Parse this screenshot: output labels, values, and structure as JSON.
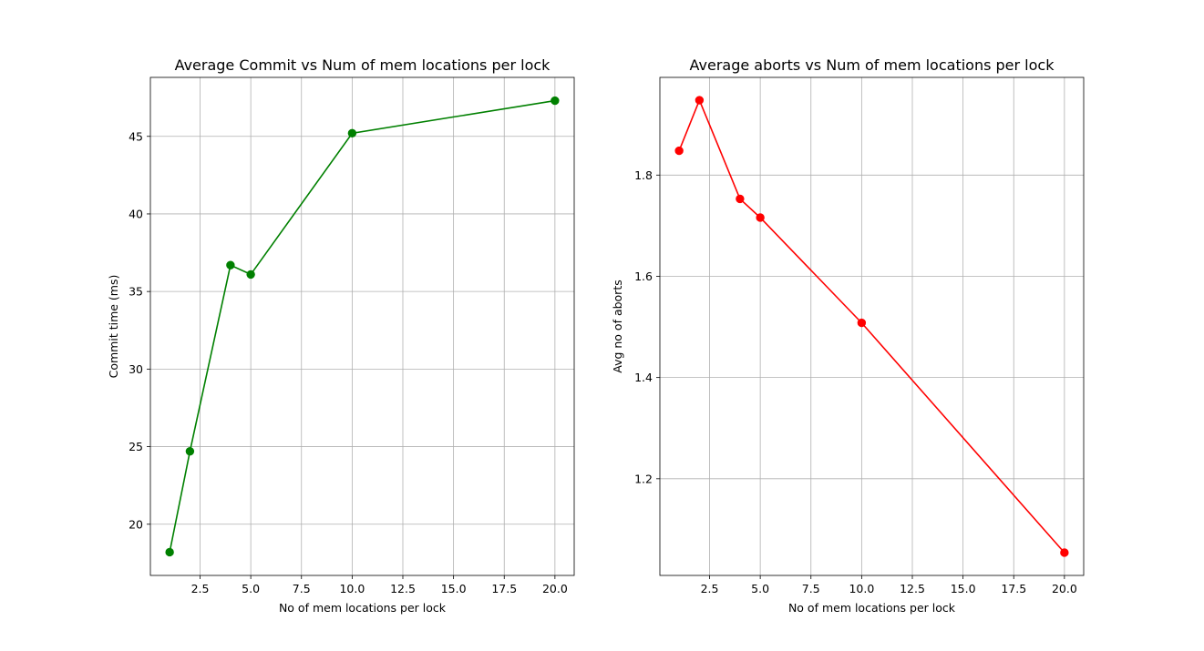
{
  "chart_data": [
    {
      "type": "line",
      "title": "Average Commit vs Num of mem locations per lock",
      "xlabel": "No of mem locations per lock",
      "ylabel": "Commit time (ms)",
      "x": [
        1,
        2,
        4,
        5,
        10,
        20
      ],
      "series": [
        {
          "values": [
            18.2,
            24.7,
            36.7,
            36.1,
            45.2,
            47.3
          ],
          "color": "#008000",
          "marker": "circle"
        }
      ],
      "xlim": [
        0.05,
        20.95
      ],
      "ylim": [
        16.7,
        48.8
      ],
      "xticks": [
        2.5,
        5.0,
        7.5,
        10.0,
        12.5,
        15.0,
        17.5,
        20.0
      ],
      "xtick_labels": [
        "2.5",
        "5.0",
        "7.5",
        "10.0",
        "12.5",
        "15.0",
        "17.5",
        "20.0"
      ],
      "yticks": [
        20,
        25,
        30,
        35,
        40,
        45
      ],
      "ytick_labels": [
        "20",
        "25",
        "30",
        "35",
        "40",
        "45"
      ],
      "grid": true
    },
    {
      "type": "line",
      "title": "Average aborts vs Num of mem locations per lock",
      "xlabel": "No of mem locations per lock",
      "ylabel": "Avg no of aborts",
      "x": [
        1,
        2,
        4,
        5,
        10,
        20
      ],
      "series": [
        {
          "values": [
            1.848,
            1.948,
            1.753,
            1.716,
            1.508,
            1.054
          ],
          "color": "#ff0000",
          "marker": "circle"
        }
      ],
      "xlim": [
        0.05,
        20.95
      ],
      "ylim": [
        1.009,
        1.993
      ],
      "xticks": [
        2.5,
        5.0,
        7.5,
        10.0,
        12.5,
        15.0,
        17.5,
        20.0
      ],
      "xtick_labels": [
        "2.5",
        "5.0",
        "7.5",
        "10.0",
        "12.5",
        "15.0",
        "17.5",
        "20.0"
      ],
      "yticks": [
        1.2,
        1.4,
        1.6,
        1.8
      ],
      "ytick_labels": [
        "1.2",
        "1.4",
        "1.6",
        "1.8"
      ],
      "grid": true
    }
  ]
}
